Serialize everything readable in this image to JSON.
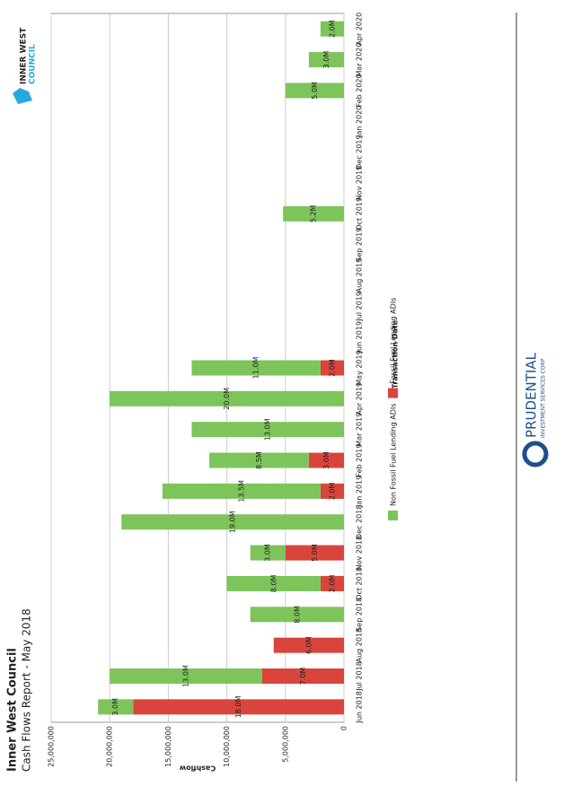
{
  "chart_data": {
    "type": "stacked_bar",
    "title": "Inner West Council",
    "subtitle": "Cash Flows Report - May 2018",
    "x_label": "Transaction Date",
    "y_label": "Cashflow",
    "categories": [
      "Jun 2018",
      "Jul 2018",
      "Aug 2018",
      "Sep 2018",
      "Oct 2018",
      "Nov 2018",
      "Dec 2018",
      "Jan 2019",
      "Feb 2019",
      "Mar 2019",
      "Apr 2019",
      "May 2019",
      "Jun 2019",
      "Jul 2019",
      "Aug 2019",
      "Sep 2019",
      "Oct 2019",
      "Nov 2019",
      "Dec 2019",
      "Jan 2020",
      "Feb 2020",
      "Mar 2020",
      "Apr 2020"
    ],
    "series": [
      {
        "name": "Fossil Fuel Lending ADIs",
        "color": "#d9453c",
        "values": [
          18000000,
          7000000,
          6000000,
          null,
          2000000,
          5000000,
          null,
          2000000,
          3000000,
          null,
          null,
          2000000,
          null,
          null,
          null,
          null,
          null,
          null,
          null,
          null,
          null,
          null,
          null
        ],
        "value_labels": [
          "18.0M",
          "7.0M",
          "6.0M",
          null,
          "2.0M",
          "5.0M",
          null,
          "2.0M",
          "3.0M",
          null,
          null,
          "2.0M",
          null,
          null,
          null,
          null,
          null,
          null,
          null,
          null,
          null,
          null,
          null
        ]
      },
      {
        "name": "Non Fossil Fuel Lending ADIs",
        "color": "#7dc45a",
        "values": [
          3000000,
          13000000,
          null,
          8000000,
          8000000,
          3000000,
          19000000,
          13500000,
          8500000,
          13000000,
          20000000,
          11000000,
          null,
          null,
          null,
          null,
          5200000,
          null,
          null,
          null,
          5000000,
          3000000,
          2000000
        ],
        "value_labels": [
          "3.0M",
          "13.0M",
          null,
          "8.0M",
          "8.0M",
          "3.0M",
          "19.0M",
          "13.5M",
          "8.5M",
          "13.0M",
          "20.0M",
          "11.0M",
          null,
          null,
          null,
          null,
          "5.2M",
          null,
          null,
          null,
          "5.0M",
          "3.0M",
          "2.0M"
        ]
      }
    ],
    "legend_order": [
      1,
      0
    ],
    "ylim": [
      0,
      25000000
    ],
    "yticks": [
      0,
      {
        "value": 5000000,
        "label": "5,000,000"
      },
      {
        "value": 10000000,
        "label": "10,000,000"
      },
      {
        "value": 15000000,
        "label": "15,000,000"
      },
      {
        "value": 20000000,
        "label": "20,000,000"
      },
      {
        "value": 25000000,
        "label": "25,000,000"
      }
    ],
    "grid": true
  },
  "logos": {
    "council": [
      "INNER WEST",
      "COUNCIL"
    ],
    "prudential": "PRUDENTIAL",
    "prudential_sub": "INVESTMENT SERVICES CORP"
  }
}
